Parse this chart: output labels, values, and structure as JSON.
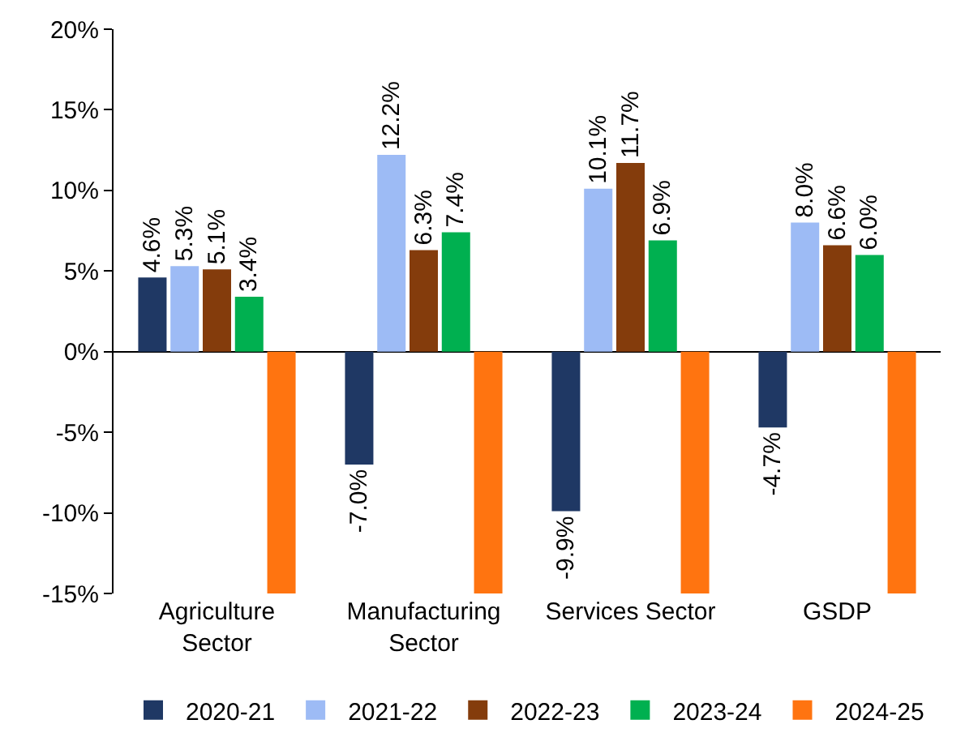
{
  "chart_data": {
    "type": "bar",
    "categories": [
      "Agriculture\nSector",
      "Manufacturing\nSector",
      "Services Sector",
      "GSDP"
    ],
    "series": [
      {
        "name": "2020-21",
        "color": "#1f3864",
        "values": [
          4.6,
          -7.0,
          -9.9,
          -4.7
        ],
        "value_labels": [
          "4.6%",
          "-7.0%",
          "-9.9%",
          "-4.7%"
        ]
      },
      {
        "name": "2021-22",
        "color": "#9dbbf5",
        "values": [
          5.3,
          12.2,
          10.1,
          8.0
        ],
        "value_labels": [
          "5.3%",
          "12.2%",
          "10.1%",
          "8.0%"
        ]
      },
      {
        "name": "2022-23",
        "color": "#843c0c",
        "values": [
          5.1,
          6.3,
          11.7,
          6.6
        ],
        "value_labels": [
          "5.1%",
          "6.3%",
          "11.7%",
          "6.6%"
        ]
      },
      {
        "name": "2023-24",
        "color": "#00b050",
        "values": [
          3.4,
          7.4,
          6.9,
          6.0
        ],
        "value_labels": [
          "3.4%",
          "7.4%",
          "6.9%",
          "6.0%"
        ]
      },
      {
        "name": "2024-25",
        "color": "#ff7410",
        "values": [
          -15,
          -15,
          -15,
          -15
        ],
        "value_labels": [
          null,
          null,
          null,
          null
        ]
      }
    ],
    "ylim": [
      -15,
      20
    ],
    "yticks": [
      {
        "value": -15,
        "label": "-15%"
      },
      {
        "value": -10,
        "label": "-10%"
      },
      {
        "value": -5,
        "label": "-5%"
      },
      {
        "value": 0,
        "label": "0%"
      },
      {
        "value": 5,
        "label": "5%"
      },
      {
        "value": 10,
        "label": "10%"
      },
      {
        "value": 15,
        "label": "15%"
      },
      {
        "value": 20,
        "label": "20%"
      }
    ],
    "legend": "bottom"
  }
}
